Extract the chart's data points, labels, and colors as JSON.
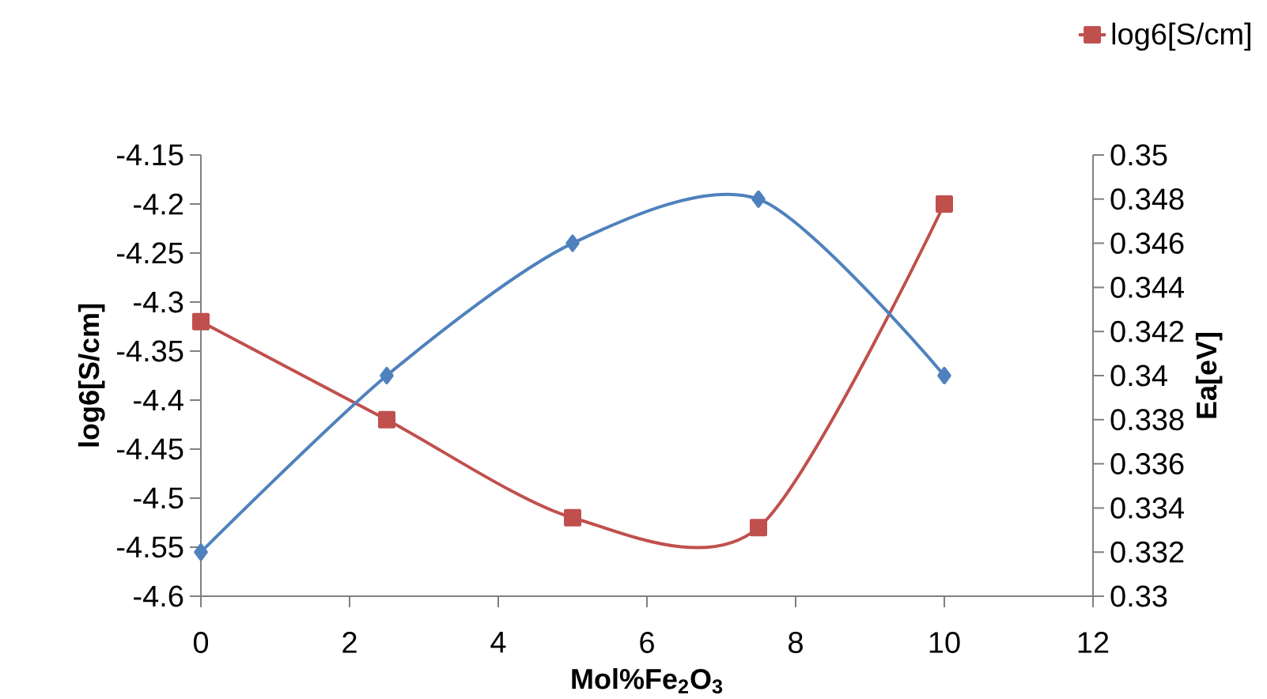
{
  "chart_data": {
    "type": "line",
    "xlabel": "Mol%Fe$_{2}$O$_{3}$",
    "ylabel": "log6[S/cm]",
    "y2label": "Ea[eV]",
    "x": [
      0,
      2.5,
      5,
      7.5,
      10
    ],
    "xlim": [
      0,
      12
    ],
    "xticks": [
      0,
      2,
      4,
      6,
      8,
      10,
      12
    ],
    "ylim": [
      -4.6,
      -4.15
    ],
    "yticks": [
      -4.6,
      -4.55,
      -4.5,
      -4.45,
      -4.4,
      -4.35,
      -4.3,
      -4.25,
      -4.2,
      -4.15
    ],
    "y2lim": [
      0.33,
      0.35
    ],
    "y2ticks": [
      0.33,
      0.332,
      0.334,
      0.336,
      0.338,
      0.34,
      0.342,
      0.344,
      0.346,
      0.348,
      0.35
    ],
    "series": [
      {
        "name": "log6[S/cm]",
        "color": "#c0504d",
        "marker": "square",
        "values": [
          -4.32,
          -4.42,
          -4.52,
          -4.53,
          -4.2
        ]
      },
      {
        "color": "#4f81bd",
        "marker": "diamond",
        "axis": "y2",
        "values": [
          0.332,
          0.34,
          0.346,
          0.348,
          0.34
        ]
      }
    ],
    "legend": "top right"
  }
}
